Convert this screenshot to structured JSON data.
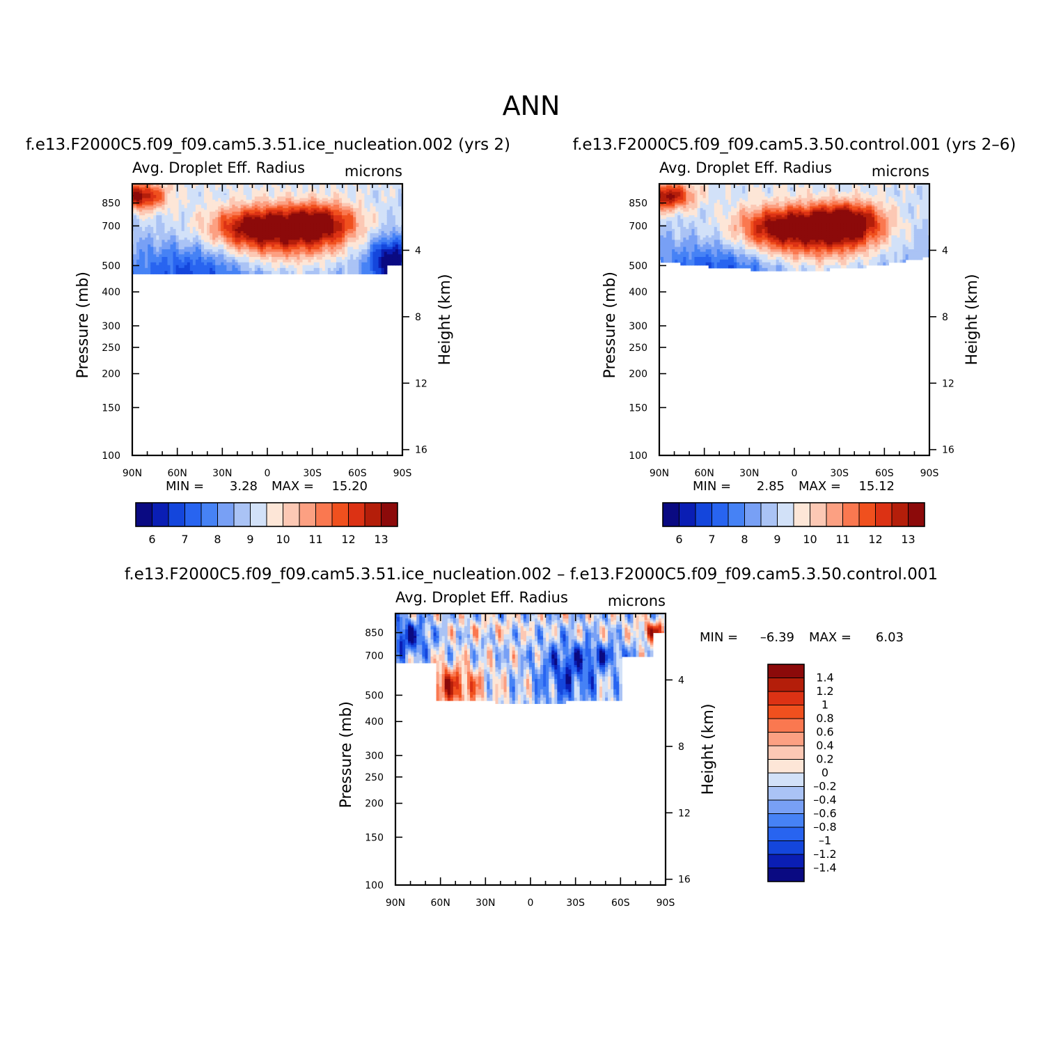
{
  "figure": {
    "title": "ANN",
    "field": "Avg. Droplet Eff. Radius",
    "units": "microns",
    "ylabel_left": "Pressure (mb)",
    "ylabel_right": "Height (km)",
    "pressure_ticks": [
      "100",
      "150",
      "200",
      "250",
      "300",
      "400",
      "500",
      "700",
      "850"
    ],
    "height_ticks": [
      "16",
      "12",
      "8",
      "4"
    ],
    "lat_ticks": [
      "90N",
      "60N",
      "30N",
      "0",
      "30S",
      "60S",
      "90S"
    ]
  },
  "panels": [
    {
      "id": "test",
      "title": "f.e13.F2000C5.f09_f09.cam5.3.51.ice_nucleation.002  (yrs 2)",
      "min_label": "MIN =",
      "min_value": "3.28",
      "max_label": "MAX =",
      "max_value": "15.20"
    },
    {
      "id": "control",
      "title": "f.e13.F2000C5.f09_f09.cam5.3.50.control.001  (yrs 2–6)",
      "min_label": "MIN =",
      "min_value": "2.85",
      "max_label": "MAX =",
      "max_value": "15.12"
    },
    {
      "id": "diff",
      "title": "f.e13.F2000C5.f09_f09.cam5.3.51.ice_nucleation.002 – f.e13.F2000C5.f09_f09.cam5.3.50.control.001",
      "min_label": "MIN =",
      "min_value": "–6.39",
      "max_label": "MAX =",
      "max_value": "6.03"
    }
  ],
  "colorbar_abs": {
    "colors": [
      "#0a0a82",
      "#0a1eb4",
      "#1446dc",
      "#2864f0",
      "#4682f5",
      "#78a0f5",
      "#aac3f5",
      "#d2e1f8",
      "#fde6d7",
      "#fcc8b4",
      "#fca082",
      "#fa7850",
      "#f0501e",
      "#dc3214",
      "#b41e0a",
      "#8c0a0a"
    ],
    "labels": [
      "6",
      "7",
      "8",
      "9",
      "10",
      "11",
      "12",
      "13"
    ]
  },
  "colorbar_diff": {
    "colors": [
      "#0a0a82",
      "#0a1eb4",
      "#1446dc",
      "#2864f0",
      "#4682f5",
      "#78a0f5",
      "#aac3f5",
      "#d2e1f8",
      "#fde6d7",
      "#fcc8b4",
      "#fca082",
      "#fa7850",
      "#f0501e",
      "#dc3214",
      "#b41e0a",
      "#8c0a0a"
    ],
    "labels": [
      "1.4",
      "1.2",
      "1",
      "0.8",
      "0.6",
      "0.4",
      "0.2",
      "0",
      "–0.2",
      "–0.4",
      "–0.6",
      "–0.8",
      "–1",
      "–1.2",
      "–1.4"
    ]
  },
  "chart_data": [
    {
      "type": "heatmap",
      "title": "f.e13.F2000C5.f09_f09.cam5.3.51.ice_nucleation.002  (yrs 2)",
      "x_range": [
        90,
        -90
      ],
      "y_range_mb": [
        100,
        1000
      ],
      "min": 3.28,
      "max": 15.2,
      "levels": [
        6,
        6.5,
        7,
        7.5,
        8,
        8.5,
        9,
        9.5,
        10,
        10.5,
        11,
        11.5,
        12,
        12.5,
        13
      ]
    },
    {
      "type": "heatmap",
      "title": "f.e13.F2000C5.f09_f09.cam5.3.50.control.001  (yrs 2–6)",
      "x_range": [
        90,
        -90
      ],
      "y_range_mb": [
        100,
        1000
      ],
      "min": 2.85,
      "max": 15.12,
      "levels": [
        6,
        6.5,
        7,
        7.5,
        8,
        8.5,
        9,
        9.5,
        10,
        10.5,
        11,
        11.5,
        12,
        12.5,
        13
      ]
    },
    {
      "type": "heatmap",
      "title": "ice_nucleation.002 – control.001",
      "x_range": [
        90,
        -90
      ],
      "y_range_mb": [
        100,
        1000
      ],
      "min": -6.39,
      "max": 6.03,
      "levels": [
        -1.4,
        -1.2,
        -1,
        -0.8,
        -0.6,
        -0.4,
        -0.2,
        0,
        0.2,
        0.4,
        0.6,
        0.8,
        1,
        1.2,
        1.4
      ]
    }
  ]
}
